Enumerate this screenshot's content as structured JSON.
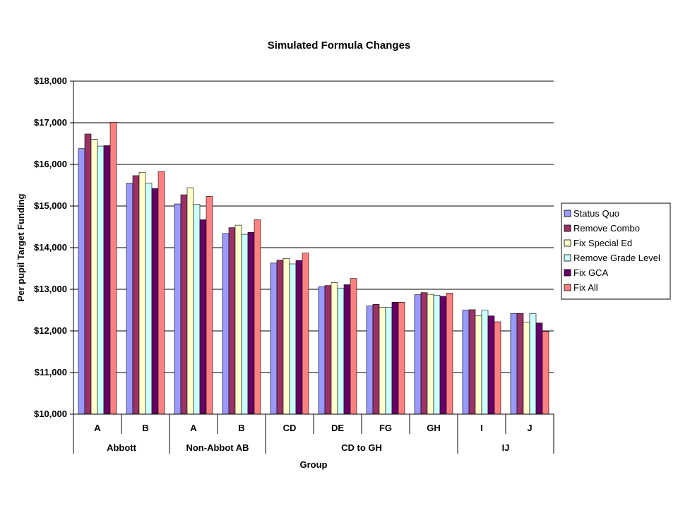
{
  "chart_data": {
    "type": "bar",
    "title": "Simulated Formula Changes",
    "xlabel": "Group",
    "ylabel": "Per pupil Target Funding",
    "ylim": [
      10000,
      18000
    ],
    "y_ticks": [
      "$10,000",
      "$11,000",
      "$12,000",
      "$13,000",
      "$14,000",
      "$15,000",
      "$16,000",
      "$17,000",
      "$18,000"
    ],
    "y_tick_values": [
      10000,
      11000,
      12000,
      13000,
      14000,
      15000,
      16000,
      17000,
      18000
    ],
    "grid": true,
    "legend_position": "right",
    "categories": [
      "A",
      "B",
      "A",
      "B",
      "CD",
      "DE",
      "FG",
      "GH",
      "I",
      "J"
    ],
    "groups": [
      {
        "label": "Abbott",
        "span": 2
      },
      {
        "label": "Non-Abbot AB",
        "span": 2
      },
      {
        "label": "CD to GH",
        "span": 4
      },
      {
        "label": "IJ",
        "span": 2
      }
    ],
    "series": [
      {
        "name": "Status Quo",
        "color": "#9999FF",
        "values": [
          16380,
          15550,
          15050,
          14340,
          13630,
          13060,
          12600,
          12870,
          12500,
          12420
        ]
      },
      {
        "name": "Remove Combo",
        "color": "#993366",
        "values": [
          16730,
          15730,
          15270,
          14480,
          13700,
          13090,
          12640,
          12920,
          12510,
          12420
        ]
      },
      {
        "name": "Fix Special Ed",
        "color": "#FFFFCC",
        "values": [
          16600,
          15810,
          15440,
          14540,
          13740,
          13160,
          12570,
          12880,
          12360,
          12210
        ]
      },
      {
        "name": "Remove Grade Level",
        "color": "#CCFFFF",
        "values": [
          16440,
          15550,
          15040,
          14320,
          13610,
          13030,
          12570,
          12860,
          12500,
          12420
        ]
      },
      {
        "name": "Fix GCA",
        "color": "#660066",
        "values": [
          16450,
          15420,
          14670,
          14370,
          13690,
          13110,
          12690,
          12830,
          12360,
          12190
        ]
      },
      {
        "name": "Fix All",
        "color": "#FF8080",
        "values": [
          17010,
          15830,
          15230,
          14670,
          13870,
          13260,
          12690,
          12910,
          12220,
          11990
        ]
      }
    ]
  }
}
